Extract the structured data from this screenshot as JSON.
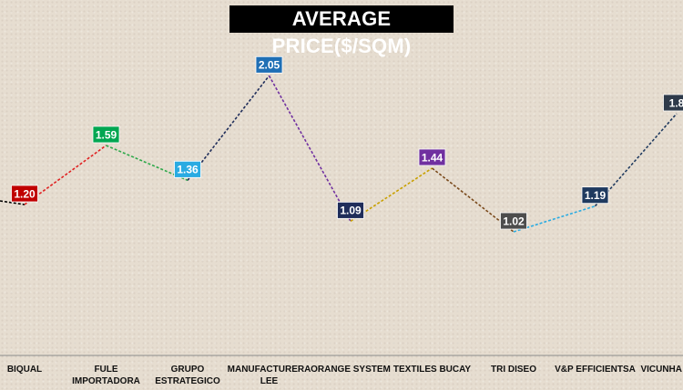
{
  "chart_data": {
    "type": "line",
    "title": "AVERAGE PRICE($/SQM)",
    "categories": [
      [
        "BIQUAL"
      ],
      [
        "FULE",
        "IMPORTADORA"
      ],
      [
        "GRUPO",
        "ESTRATEGICO"
      ],
      [
        "MANUFACTURERA",
        "LEE"
      ],
      [
        "ORANGE SYSTEM"
      ],
      [
        "TEXTILES BUCAY"
      ],
      [
        "TRI DISEO"
      ],
      [
        "V&P EFFICIENTSA"
      ],
      [
        "VICUNHA"
      ]
    ],
    "values": [
      1.2,
      1.59,
      1.36,
      2.05,
      1.09,
      1.44,
      1.02,
      1.19,
      1.8
    ],
    "data_labels": [
      "1.20",
      "1.59",
      "1.36",
      "2.05",
      "1.09",
      "1.44",
      "1.02",
      "1.19",
      "1.8"
    ],
    "label_colors": [
      "#c00000",
      "#00a651",
      "#29abe2",
      "#1f6fb5",
      "#1f2d5a",
      "#7030a0",
      "#4d4d4d",
      "#1f3a5f",
      "#2e3a4a"
    ],
    "segment_colors": [
      "#000000",
      "#e02020",
      "#2ea84a",
      "#1f2d5a",
      "#7030a0",
      "#c8a000",
      "#7a4a1c",
      "#29abe2",
      "#1f3a5f",
      "#333333"
    ],
    "line_style": "dashed",
    "grid": false,
    "legend": "none",
    "xlabel": "",
    "ylabel": ""
  }
}
